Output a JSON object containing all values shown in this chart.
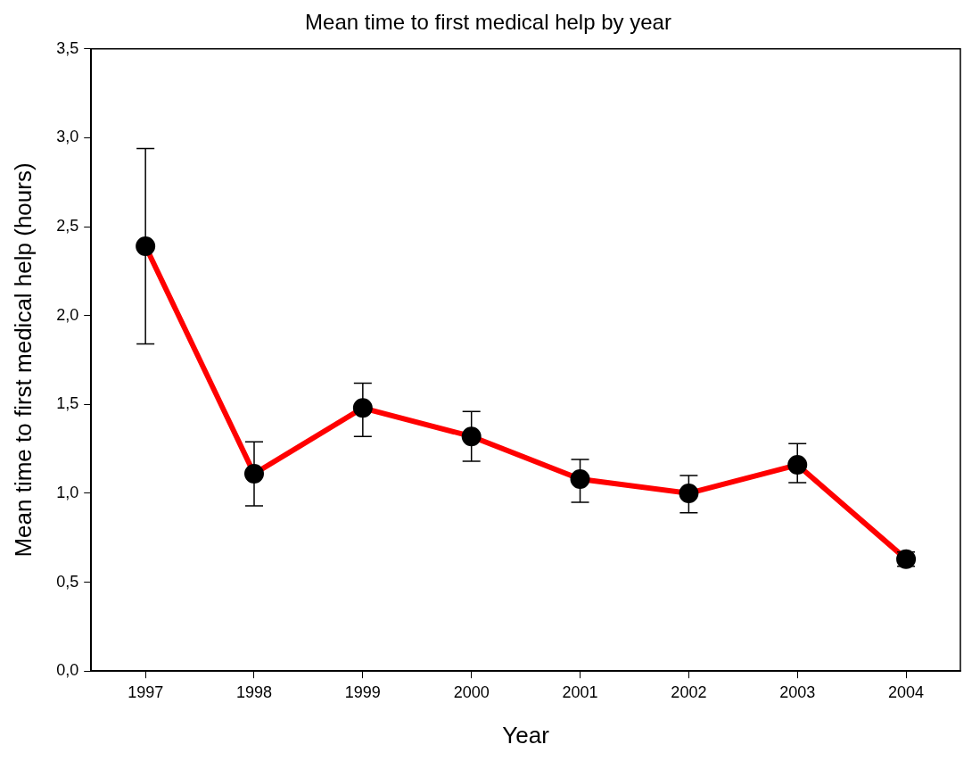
{
  "chart_data": {
    "type": "line",
    "title": "Mean time to first medical help by year",
    "xlabel": "Year",
    "ylabel": "Mean time to first medical help (hours)",
    "categories": [
      "1997",
      "1998",
      "1999",
      "2000",
      "2001",
      "2002",
      "2003",
      "2004"
    ],
    "series": [
      {
        "color": "#ff0000",
        "values": [
          2.39,
          1.11,
          1.48,
          1.32,
          1.08,
          1.0,
          1.16,
          0.63
        ],
        "errors": [
          [
            1.84,
            2.94
          ],
          [
            0.93,
            1.29
          ],
          [
            1.32,
            1.62
          ],
          [
            1.18,
            1.46
          ],
          [
            0.95,
            1.19
          ],
          [
            0.89,
            1.1
          ],
          [
            1.06,
            1.28
          ],
          [
            0.59,
            0.67
          ]
        ]
      }
    ],
    "ylim": [
      0,
      3.5
    ],
    "yticks": [
      {
        "value": 0,
        "label": "0,0"
      },
      {
        "value": 0.5,
        "label": "0,5"
      },
      {
        "value": 1,
        "label": "1,0"
      },
      {
        "value": 1.5,
        "label": "1,5"
      },
      {
        "value": 2,
        "label": "2,0"
      },
      {
        "value": 2.5,
        "label": "2,5"
      },
      {
        "value": 3,
        "label": "3,0"
      },
      {
        "value": 3.5,
        "label": "3,5"
      }
    ],
    "grid": false,
    "legend": false,
    "marker": "circle",
    "line_style": "solid"
  }
}
